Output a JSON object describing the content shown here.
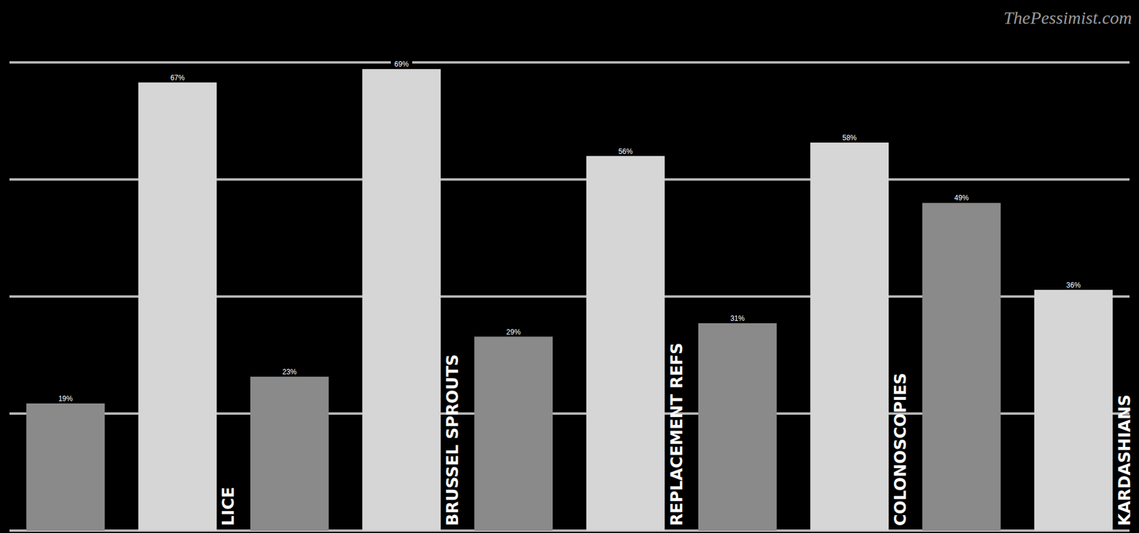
{
  "chart_data": {
    "type": "bar",
    "categories": [
      null,
      "LICE",
      null,
      "BRUSSEL SPROUTS",
      null,
      "REPLACEMENT REFS",
      null,
      "COLONOSCOPIES",
      null,
      "KARDASHIANS"
    ],
    "values": [
      19,
      67,
      23,
      69,
      29,
      56,
      31,
      58,
      49,
      36
    ],
    "value_labels": [
      "19%",
      "67%",
      "23%",
      "69%",
      "29%",
      "56%",
      "31%",
      "58%",
      "49%",
      "36%"
    ],
    "colors": [
      "#8a8a8a",
      "#d6d6d6",
      "#8a8a8a",
      "#d6d6d6",
      "#8a8a8a",
      "#d6d6d6",
      "#8a8a8a",
      "#d6d6d6",
      "#8a8a8a",
      "#d6d6d6"
    ],
    "ylim": [
      0,
      70
    ],
    "yticks": [
      0,
      17.5,
      35,
      52.5,
      70
    ],
    "grid": true,
    "data_labels": true,
    "tick_labels": false,
    "annotations": [
      "ThePessimist.com"
    ]
  }
}
